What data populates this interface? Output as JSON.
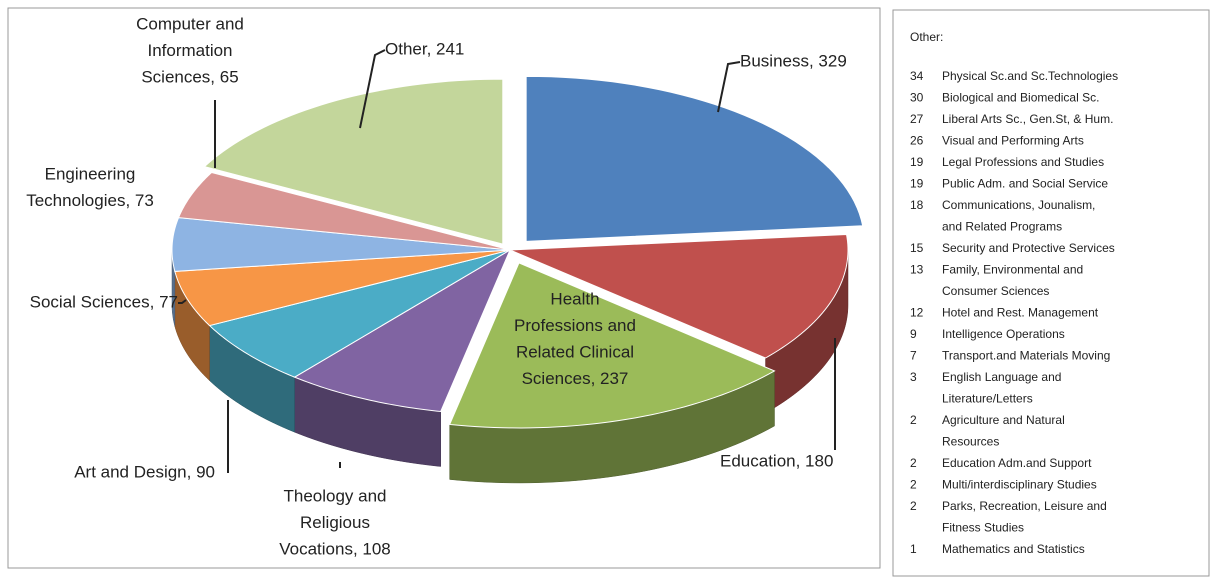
{
  "chart_data": {
    "type": "pie3d",
    "values": [
      329,
      180,
      237,
      108,
      90,
      77,
      73,
      65,
      241
    ],
    "value_labels": [
      [
        "Business, 329"
      ],
      [
        "Education, 180"
      ],
      [
        "Health",
        "Professions and",
        "Related Clinical",
        "Sciences, 237"
      ],
      [
        "Theology and",
        "Religious",
        "Vocations, 108"
      ],
      [
        "Art and Design, 90"
      ],
      [
        "Social Sciences, 77"
      ],
      [
        "Engineering",
        "Technologies, 73"
      ],
      [
        "Computer and",
        "Information",
        "Sciences, 65"
      ],
      [
        "Other, 241"
      ]
    ],
    "colors": [
      "#4f81bd",
      "#c0504d",
      "#9bbb59",
      "#8064a2",
      "#4bacc6",
      "#f79646",
      "#8eb4e3",
      "#d99694",
      "#c3d69b"
    ]
  },
  "other_breakdown": {
    "title": "Other:",
    "items": [
      {
        "value": 34,
        "label": [
          "Physical Sc.and Sc.Technologies"
        ]
      },
      {
        "value": 30,
        "label": [
          "Biological and Biomedical Sc."
        ]
      },
      {
        "value": 27,
        "label": [
          "Liberal Arts Sc., Gen.St, & Hum."
        ]
      },
      {
        "value": 26,
        "label": [
          "Visual and Performing Arts"
        ]
      },
      {
        "value": 19,
        "label": [
          "Legal Professions and Studies"
        ]
      },
      {
        "value": 19,
        "label": [
          "Public Adm. and Social Service"
        ]
      },
      {
        "value": 18,
        "label": [
          "Communications, Jounalism,",
          " and Related Programs"
        ]
      },
      {
        "value": 15,
        "label": [
          "Security and Protective Services"
        ]
      },
      {
        "value": 13,
        "label": [
          "Family, Environmental and",
          " Consumer Sciences"
        ]
      },
      {
        "value": 12,
        "label": [
          "Hotel and Rest. Management"
        ]
      },
      {
        "value": 9,
        "label": [
          "Intelligence Operations"
        ]
      },
      {
        "value": 7,
        "label": [
          "Transport.and Materials Moving"
        ]
      },
      {
        "value": 3,
        "label": [
          "English Language and",
          "Literature/Letters"
        ]
      },
      {
        "value": 2,
        "label": [
          "Agriculture and Natural",
          "Resources"
        ]
      },
      {
        "value": 2,
        "label": [
          "Education Adm.and Support"
        ]
      },
      {
        "value": 2,
        "label": [
          "Multi/interdisciplinary Studies"
        ]
      },
      {
        "value": 2,
        "label": [
          "Parks, Recreation, Leisure and",
          "Fitness Studies"
        ]
      },
      {
        "value": 1,
        "label": [
          "Mathematics and Statistics"
        ]
      }
    ]
  }
}
